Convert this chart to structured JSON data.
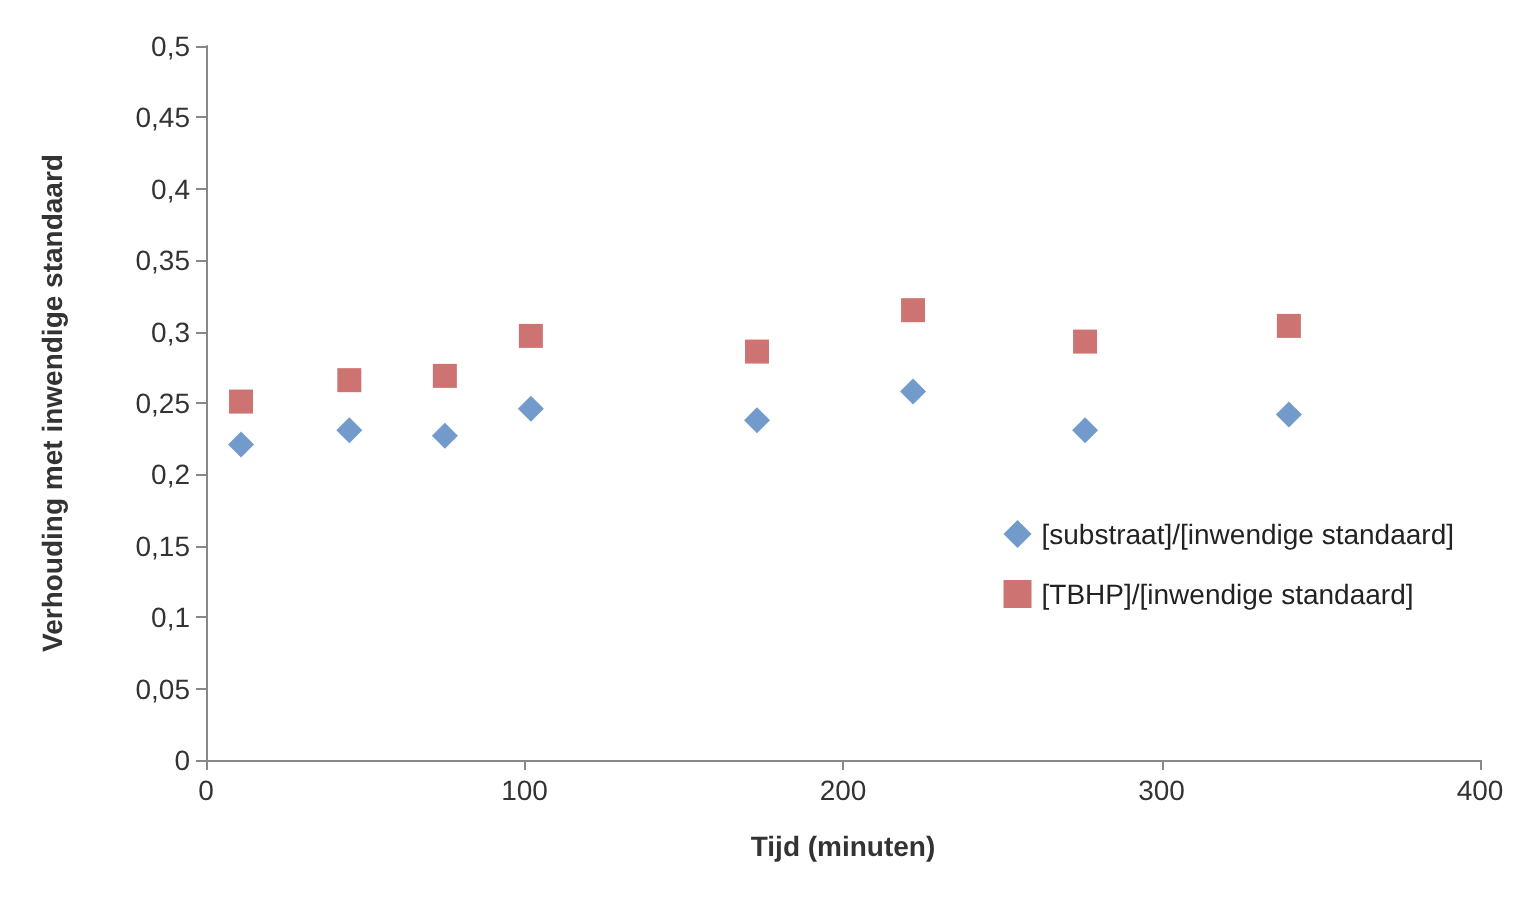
{
  "chart_data": {
    "type": "scatter",
    "xlabel": "Tijd (minuten)",
    "ylabel": "Verhouding met inwendige standaard",
    "xlim": [
      0,
      400
    ],
    "xticks": [
      0,
      100,
      200,
      300,
      400
    ],
    "ylim": [
      0,
      0.5
    ],
    "yticks": [
      0,
      {
        "value": 0.05,
        "label": "0,05"
      },
      {
        "value": 0.1,
        "label": "0,1"
      },
      {
        "value": 0.15,
        "label": "0,15"
      },
      {
        "value": 0.2,
        "label": "0,2"
      },
      {
        "value": 0.25,
        "label": "0,25"
      },
      {
        "value": 0.3,
        "label": "0,3"
      },
      {
        "value": 0.35,
        "label": "0,35"
      },
      {
        "value": 0.4,
        "label": "0,4"
      },
      {
        "value": 0.45,
        "label": "0,45"
      },
      {
        "value": 0.5,
        "label": "0,5"
      }
    ],
    "grid": false,
    "legend": "right",
    "x": [
      11,
      45,
      75,
      102,
      173,
      222,
      276,
      340
    ],
    "series": [
      {
        "name": "[substraat]/[inwendige standaard]",
        "color": "#4f81bd",
        "marker": "diamond",
        "values": [
          0.221,
          0.231,
          0.227,
          0.246,
          0.238,
          0.258,
          0.231,
          0.242
        ]
      },
      {
        "name": "[TBHP]/[inwendige standaard]",
        "color": "#c0504d",
        "marker": "square",
        "values": [
          0.251,
          0.266,
          0.269,
          0.297,
          0.286,
          0.315,
          0.293,
          0.304
        ]
      }
    ]
  }
}
